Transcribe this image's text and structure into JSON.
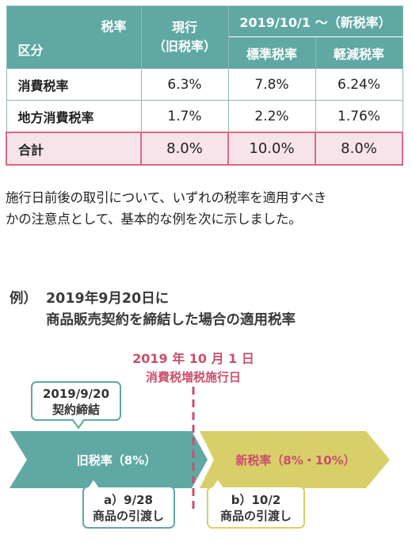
{
  "table": {
    "corner_top": "税率",
    "corner_bottom": "区分",
    "current_header_line1": "現行",
    "current_header_line2": "（旧税率）",
    "new_header": "2019/10/1 〜（新税率）",
    "standard_header": "標準税率",
    "reduced_header": "軽減税率",
    "rows": [
      {
        "label": "消費税率",
        "current": "6.3%",
        "standard": "7.8%",
        "reduced": "6.24%"
      },
      {
        "label": "地方消費税率",
        "current": "1.7%",
        "standard": "2.2%",
        "reduced": "1.76%"
      },
      {
        "label": "合計",
        "current": "8.0%",
        "standard": "10.0%",
        "reduced": "8.0%"
      }
    ]
  },
  "intro": {
    "line1": "施行日前後の取引について、いずれの税率を適用すべき",
    "line2": "かの注意点として、基本的な例を次に示しました。"
  },
  "example": {
    "prefix": "例）",
    "line1": "2019年9月20日に",
    "line2": "商品販売契約を締結した場合の適用税率"
  },
  "timeline": {
    "enforcement_date": "2019 年 10 月 1 日",
    "enforcement_label": "消費税増税施行日",
    "contract_date": "2019/9/20",
    "contract_label": "契約締結",
    "old_rate_label": "旧税率（8%）",
    "new_rate_label": "新税率（8%・10%）",
    "delivery_a_date": "a）9/28",
    "delivery_a_label": "商品の引渡し",
    "delivery_b_date": "b）10/2",
    "delivery_b_label": "商品の引渡し",
    "colors": {
      "teal": "#5fa8a3",
      "mustard": "#d8cf69",
      "crimson": "#c8506c",
      "table_header": "#5fa8a3",
      "total_row_bg": "#f7e4ea"
    }
  }
}
